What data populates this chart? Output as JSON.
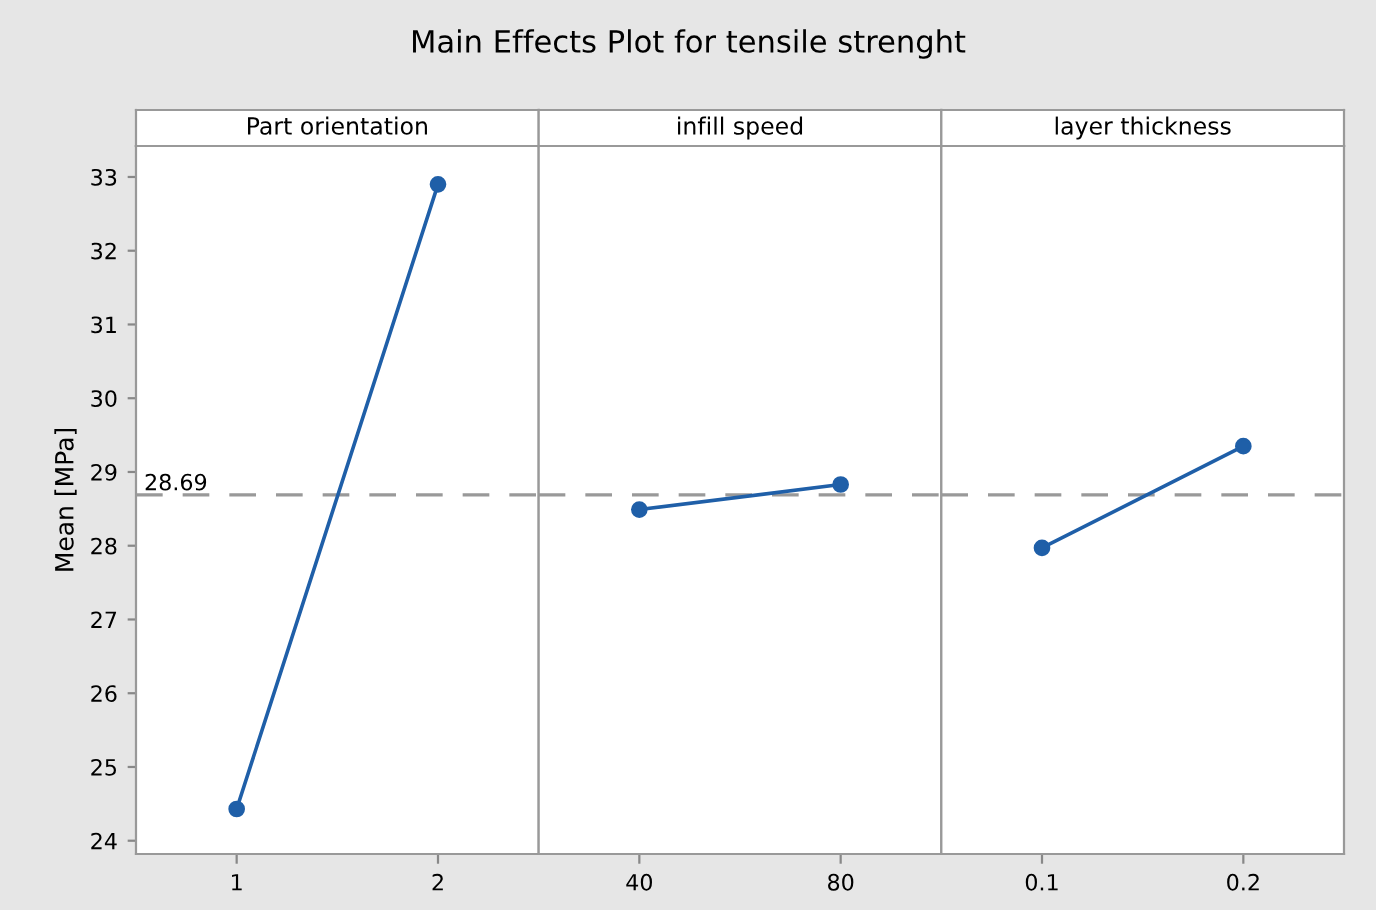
{
  "chart_data": [
    {
      "type": "line",
      "title": "Part orientation",
      "ylabel": "Mean [MPa]",
      "annotations": [
        "Main Effects Plot for tensile strenght"
      ],
      "categories": [
        "1",
        "2"
      ],
      "series": [
        {
          "color": "#1f5fa8",
          "values": [
            24.43,
            32.9
          ]
        }
      ],
      "ylim": [
        23.82,
        33.42
      ],
      "yticks": [
        24,
        25,
        26,
        27,
        28,
        29,
        30,
        31,
        32,
        33
      ],
      "marker": "circle",
      "line_style": "solid",
      "grid": false,
      "legend": false,
      "ref_lines": [
        {
          "axis": "y",
          "value": 28.69,
          "label": "28.69",
          "color": "#999999",
          "line_style": "dashed"
        }
      ]
    },
    {
      "type": "line",
      "title": "infill speed",
      "categories": [
        "40",
        "80"
      ],
      "series": [
        {
          "color": "#1f5fa8",
          "values": [
            28.49,
            28.83
          ]
        }
      ],
      "ylim": [
        23.82,
        33.42
      ],
      "yticks": [
        24,
        25,
        26,
        27,
        28,
        29,
        30,
        31,
        32,
        33
      ],
      "tick_labels": "x",
      "marker": "circle",
      "line_style": "solid",
      "grid": false,
      "legend": false,
      "ref_lines": [
        {
          "axis": "y",
          "value": 28.69,
          "color": "#999999",
          "line_style": "dashed"
        }
      ]
    },
    {
      "type": "line",
      "title": "layer thickness",
      "categories": [
        "0.1",
        "0.2"
      ],
      "series": [
        {
          "color": "#1f5fa8",
          "values": [
            27.97,
            29.35
          ]
        }
      ],
      "ylim": [
        23.82,
        33.42
      ],
      "yticks": [
        24,
        25,
        26,
        27,
        28,
        29,
        30,
        31,
        32,
        33
      ],
      "tick_labels": "x",
      "marker": "circle",
      "line_style": "solid",
      "grid": false,
      "legend": false,
      "ref_lines": [
        {
          "axis": "y",
          "value": 28.69,
          "color": "#999999",
          "line_style": "dashed"
        }
      ]
    }
  ]
}
